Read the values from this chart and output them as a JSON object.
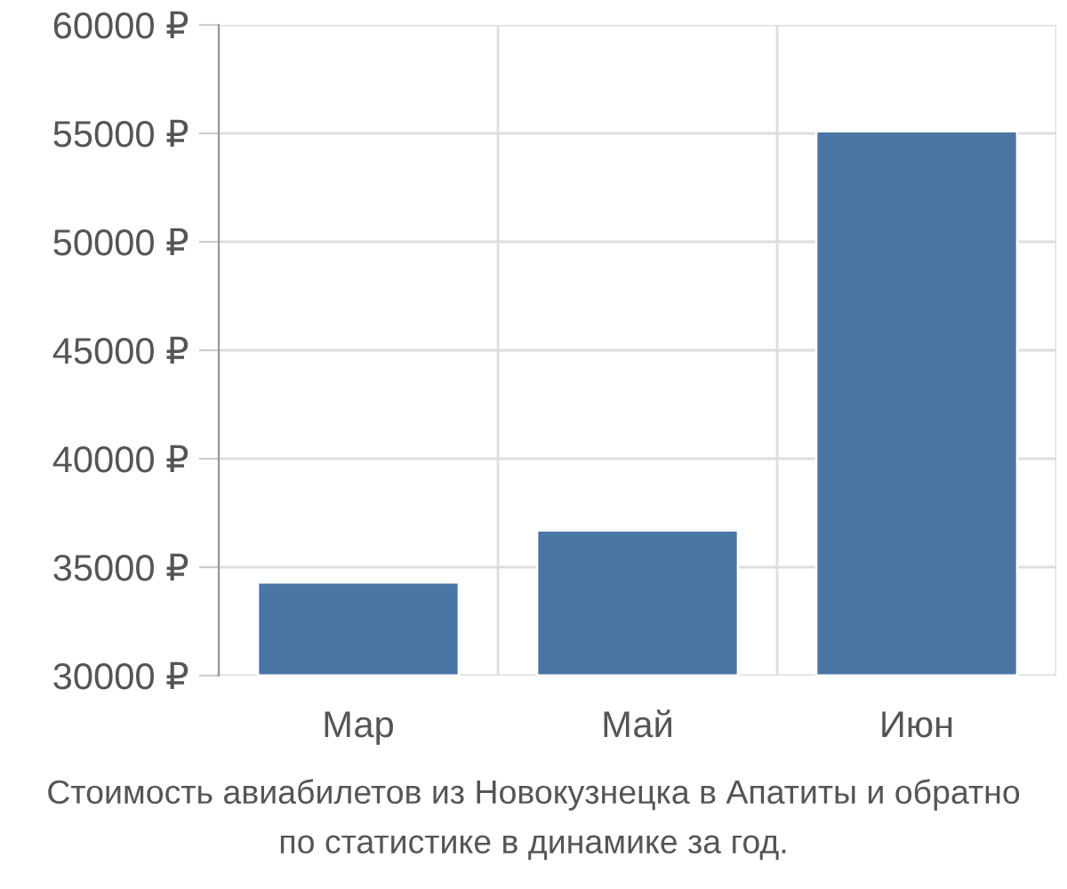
{
  "chart_data": {
    "type": "bar",
    "categories": [
      "Мар",
      "Май",
      "Июн"
    ],
    "values": [
      34300,
      36700,
      55100
    ],
    "color": "#4a76a5",
    "ylim": [
      30000,
      60000
    ],
    "yticks": [
      {
        "value": 30000,
        "label": "30000 ₽"
      },
      {
        "value": 35000,
        "label": "35000 ₽"
      },
      {
        "value": 40000,
        "label": "40000 ₽"
      },
      {
        "value": 45000,
        "label": "45000 ₽"
      },
      {
        "value": 50000,
        "label": "50000 ₽"
      },
      {
        "value": 55000,
        "label": "55000 ₽"
      },
      {
        "value": 60000,
        "label": "60000 ₽"
      }
    ],
    "grid": true,
    "annotations": [
      "Стоимость авиабилетов из Новокузнецка в Апатиты и обратно",
      "по статистике в динамике за год."
    ]
  }
}
